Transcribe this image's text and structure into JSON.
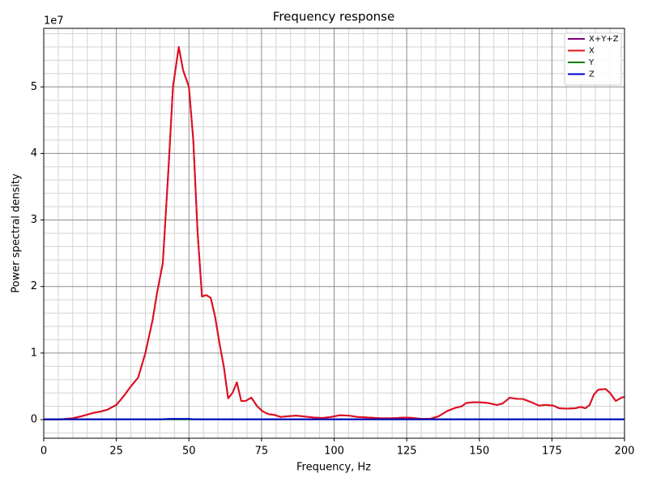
{
  "chart_data": {
    "type": "line",
    "title": "Frequency response",
    "x_label": "Frequency, Hz",
    "y_label": "Power spectral density",
    "y_offset_label": "1e7",
    "xlim": [
      0,
      200
    ],
    "xticks": [
      0,
      25,
      50,
      75,
      100,
      125,
      150,
      175,
      200
    ],
    "ylim": [
      -2800000,
      58800000
    ],
    "yticks": [
      0,
      {
        "value": 10000000,
        "label": "1"
      },
      {
        "value": 20000000,
        "label": "2"
      },
      {
        "value": 30000000,
        "label": "3"
      },
      {
        "value": 40000000,
        "label": "4"
      },
      {
        "value": 50000000,
        "label": "5"
      }
    ],
    "grid": true,
    "xminorticks": [
      5,
      10,
      15,
      20,
      30,
      35,
      40,
      45,
      55,
      60,
      65,
      70,
      80,
      85,
      90,
      95,
      105,
      110,
      115,
      120,
      130,
      135,
      140,
      145,
      155,
      160,
      165,
      170,
      180,
      185,
      190,
      195
    ],
    "yminorticks": [
      -2000000,
      2000000,
      4000000,
      6000000,
      8000000,
      12000000,
      14000000,
      16000000,
      18000000,
      22000000,
      24000000,
      26000000,
      28000000,
      32000000,
      34000000,
      36000000,
      38000000,
      42000000,
      44000000,
      46000000,
      48000000,
      52000000,
      54000000,
      56000000,
      58000000
    ],
    "legend": "upper right",
    "x": [
      0,
      5,
      10,
      13,
      17,
      19.5,
      22,
      25,
      27.5,
      30,
      32.5,
      35,
      37.5,
      39,
      41,
      43,
      44.5,
      46.5,
      48,
      50,
      51.5,
      53,
      54.5,
      56,
      57.5,
      59,
      60.5,
      62,
      63.5,
      65,
      66.5,
      68,
      69.5,
      71.5,
      73.5,
      75.5,
      77.5,
      79.5,
      81.5,
      84,
      87,
      90,
      93,
      96,
      99,
      102,
      105,
      108,
      112,
      116,
      120,
      124,
      127,
      130,
      133,
      136,
      139,
      142,
      144,
      145.5,
      148,
      150,
      153,
      156,
      158,
      160.5,
      163,
      165,
      168,
      170.5,
      173,
      175.5,
      177.5,
      180,
      183,
      185,
      186.5,
      188,
      189.5,
      191,
      193.5,
      195,
      197,
      199,
      200
    ],
    "series": [
      {
        "name": "X+Y+Z",
        "color": "purple",
        "values": [
          0,
          0,
          200000,
          500000,
          1000000,
          1200000,
          1500000,
          2200000,
          3500000,
          5000000,
          6300000,
          10000000,
          15000000,
          19000000,
          23500000,
          38000000,
          50000000,
          56000000,
          52500000,
          50000000,
          42000000,
          28000000,
          18500000,
          18700000,
          18300000,
          15500000,
          11500000,
          8000000,
          3200000,
          4000000,
          5600000,
          2800000,
          2800000,
          3300000,
          2000000,
          1200000,
          800000,
          700000,
          400000,
          500000,
          600000,
          450000,
          300000,
          250000,
          400000,
          650000,
          600000,
          400000,
          300000,
          200000,
          200000,
          300000,
          250000,
          100000,
          100000,
          500000,
          1300000,
          1800000,
          2000000,
          2500000,
          2600000,
          2600000,
          2500000,
          2200000,
          2400000,
          3300000,
          3100000,
          3100000,
          2600000,
          2100000,
          2200000,
          2100000,
          1700000,
          1650000,
          1700000,
          1900000,
          1700000,
          2200000,
          3800000,
          4500000,
          4600000,
          4000000,
          2800000,
          3300000,
          3400000
        ]
      },
      {
        "name": "X",
        "color": "#e3111b",
        "values": [
          0,
          0,
          200000,
          500000,
          1000000,
          1200000,
          1500000,
          2200000,
          3500000,
          5000000,
          6300000,
          10000000,
          15000000,
          19000000,
          23500000,
          38000000,
          50000000,
          56000000,
          52500000,
          50000000,
          42000000,
          28000000,
          18500000,
          18700000,
          18300000,
          15500000,
          11500000,
          8000000,
          3200000,
          4000000,
          5600000,
          2800000,
          2800000,
          3300000,
          2000000,
          1200000,
          800000,
          700000,
          400000,
          500000,
          600000,
          450000,
          300000,
          250000,
          400000,
          650000,
          600000,
          400000,
          300000,
          200000,
          200000,
          300000,
          250000,
          100000,
          100000,
          500000,
          1300000,
          1800000,
          2000000,
          2500000,
          2600000,
          2600000,
          2500000,
          2200000,
          2400000,
          3300000,
          3100000,
          3100000,
          2600000,
          2100000,
          2200000,
          2100000,
          1700000,
          1650000,
          1700000,
          1900000,
          1700000,
          2200000,
          3800000,
          4500000,
          4600000,
          4000000,
          2800000,
          3300000,
          3400000
        ]
      },
      {
        "name": "Y",
        "color": "green",
        "values": [
          30000,
          30000,
          30000,
          30000,
          30000,
          30000,
          30000,
          30000,
          30000,
          30000,
          30000,
          30000,
          30000,
          30000,
          30000,
          30000,
          30000,
          30000,
          30000,
          30000,
          30000,
          30000,
          30000,
          30000,
          30000,
          30000,
          30000,
          30000,
          30000,
          30000,
          30000,
          30000,
          30000,
          30000,
          30000,
          30000,
          30000,
          30000,
          30000,
          30000,
          30000,
          30000,
          30000,
          30000,
          30000,
          30000,
          30000,
          30000,
          30000,
          30000,
          30000,
          30000,
          30000,
          30000,
          30000,
          30000,
          30000,
          30000,
          30000,
          30000,
          30000,
          30000,
          30000,
          30000,
          30000,
          30000,
          30000,
          30000,
          30000,
          30000,
          30000,
          30000,
          30000,
          30000,
          30000,
          30000,
          30000,
          30000,
          30000,
          30000,
          30000,
          30000,
          30000,
          30000,
          30000
        ]
      },
      {
        "name": "Z",
        "color": "#0000cc",
        "values": [
          50000,
          50000,
          50000,
          50000,
          50000,
          50000,
          50000,
          50000,
          50000,
          50000,
          50000,
          50000,
          50000,
          50000,
          50000,
          100000,
          100000,
          100000,
          100000,
          100000,
          50000,
          50000,
          50000,
          50000,
          50000,
          50000,
          50000,
          50000,
          50000,
          50000,
          50000,
          50000,
          50000,
          50000,
          50000,
          50000,
          50000,
          50000,
          50000,
          50000,
          50000,
          50000,
          50000,
          50000,
          50000,
          50000,
          50000,
          50000,
          50000,
          50000,
          50000,
          50000,
          50000,
          50000,
          50000,
          50000,
          50000,
          50000,
          50000,
          50000,
          50000,
          50000,
          50000,
          50000,
          50000,
          50000,
          50000,
          50000,
          50000,
          50000,
          50000,
          50000,
          50000,
          50000,
          50000,
          50000,
          50000,
          50000,
          50000,
          50000,
          50000,
          50000,
          50000,
          50000,
          50000
        ]
      }
    ]
  }
}
